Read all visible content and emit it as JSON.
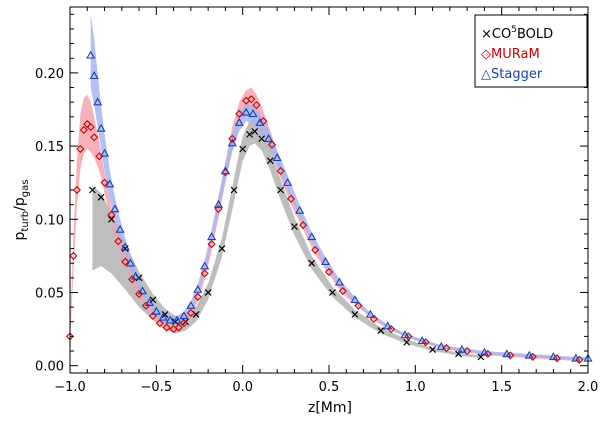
{
  "chart_data": {
    "type": "scatter",
    "xlabel": "z[Mm]",
    "ylabel": "p_turb/p_gas",
    "ylabel_main": "p",
    "ylabel_num_sub": "turb",
    "ylabel_den_sub": "gas",
    "xlim": [
      -1.0,
      2.0
    ],
    "ylim": [
      -0.005,
      0.245
    ],
    "xticks": [
      -1.0,
      -0.5,
      0.0,
      0.5,
      1.0,
      1.5,
      2.0
    ],
    "xtick_labels": [
      "−1.0",
      "−0.5",
      "0.0",
      "0.5",
      "1.0",
      "1.5",
      "2.0"
    ],
    "yticks": [
      0.0,
      0.05,
      0.1,
      0.15,
      0.2
    ],
    "ytick_labels": [
      "0.00",
      "0.05",
      "0.10",
      "0.15",
      "0.20"
    ],
    "legend": {
      "position": "top-right",
      "entries": [
        {
          "marker": "×",
          "text": "CO",
          "sup": "5",
          "text_after": "BOLD",
          "color": "#000000"
        },
        {
          "marker": "◇",
          "text": "MURaM",
          "sup": "",
          "text_after": "",
          "color": "#cc0000"
        },
        {
          "marker": "△",
          "text": "Stagger",
          "sup": "",
          "text_after": "",
          "color": "#1a3fb0"
        }
      ]
    },
    "series": [
      {
        "name": "CO5BOLD",
        "marker": "x",
        "color": "#000000",
        "band_color": "#b3b3b3",
        "x": [
          -0.87,
          -0.82,
          -0.76,
          -0.68,
          -0.6,
          -0.52,
          -0.45,
          -0.39,
          -0.33,
          -0.27,
          -0.2,
          -0.12,
          -0.05,
          0.0,
          0.04,
          0.07,
          0.11,
          0.16,
          0.22,
          0.3,
          0.4,
          0.52,
          0.65,
          0.8,
          0.95,
          1.1,
          1.25,
          1.38
        ],
        "y": [
          0.12,
          0.115,
          0.1,
          0.08,
          0.06,
          0.045,
          0.035,
          0.03,
          0.03,
          0.035,
          0.05,
          0.08,
          0.12,
          0.148,
          0.158,
          0.16,
          0.155,
          0.14,
          0.12,
          0.095,
          0.07,
          0.05,
          0.035,
          0.024,
          0.016,
          0.011,
          0.008,
          0.006
        ],
        "band_upper": [
          0.123,
          0.118,
          0.104,
          0.084,
          0.064,
          0.049,
          0.039,
          0.034,
          0.034,
          0.04,
          0.056,
          0.087,
          0.128,
          0.157,
          0.167,
          0.169,
          0.164,
          0.148,
          0.127,
          0.101,
          0.075,
          0.054,
          0.038,
          0.026,
          0.018,
          0.012,
          0.009,
          0.007
        ],
        "band_lower": [
          0.065,
          0.068,
          0.063,
          0.052,
          0.04,
          0.031,
          0.025,
          0.022,
          0.024,
          0.03,
          0.045,
          0.074,
          0.112,
          0.14,
          0.15,
          0.152,
          0.147,
          0.133,
          0.113,
          0.089,
          0.066,
          0.047,
          0.033,
          0.022,
          0.015,
          0.01,
          0.007,
          0.005
        ]
      },
      {
        "name": "MURaM",
        "marker": "diamond",
        "color": "#cc0000",
        "band_color": "#f5a3ae",
        "x": [
          -1.0,
          -0.98,
          -0.96,
          -0.94,
          -0.92,
          -0.9,
          -0.88,
          -0.86,
          -0.83,
          -0.8,
          -0.76,
          -0.72,
          -0.68,
          -0.64,
          -0.6,
          -0.56,
          -0.52,
          -0.48,
          -0.44,
          -0.4,
          -0.37,
          -0.34,
          -0.3,
          -0.26,
          -0.22,
          -0.18,
          -0.14,
          -0.1,
          -0.06,
          -0.02,
          0.02,
          0.05,
          0.08,
          0.12,
          0.17,
          0.22,
          0.28,
          0.35,
          0.42,
          0.5,
          0.58,
          0.67,
          0.76,
          0.86,
          0.96,
          1.06,
          1.18,
          1.3,
          1.42,
          1.55,
          1.68,
          1.82,
          1.95
        ],
        "y": [
          0.02,
          0.075,
          0.12,
          0.148,
          0.161,
          0.165,
          0.163,
          0.156,
          0.143,
          0.125,
          0.103,
          0.085,
          0.071,
          0.059,
          0.049,
          0.041,
          0.034,
          0.029,
          0.026,
          0.025,
          0.026,
          0.029,
          0.036,
          0.047,
          0.063,
          0.083,
          0.107,
          0.132,
          0.155,
          0.172,
          0.181,
          0.182,
          0.178,
          0.167,
          0.151,
          0.133,
          0.114,
          0.096,
          0.079,
          0.064,
          0.051,
          0.041,
          0.032,
          0.025,
          0.02,
          0.016,
          0.012,
          0.01,
          0.008,
          0.007,
          0.006,
          0.005,
          0.004
        ],
        "band_upper": [
          0.025,
          0.09,
          0.14,
          0.172,
          0.183,
          0.185,
          0.18,
          0.17,
          0.153,
          0.132,
          0.108,
          0.089,
          0.074,
          0.062,
          0.051,
          0.043,
          0.036,
          0.031,
          0.028,
          0.027,
          0.028,
          0.031,
          0.038,
          0.05,
          0.067,
          0.088,
          0.113,
          0.139,
          0.163,
          0.18,
          0.188,
          0.19,
          0.185,
          0.174,
          0.157,
          0.138,
          0.118,
          0.099,
          0.082,
          0.066,
          0.053,
          0.042,
          0.033,
          0.026,
          0.021,
          0.017,
          0.013,
          0.011,
          0.009,
          0.008,
          0.007,
          0.006,
          0.005
        ],
        "band_lower": [
          0.015,
          0.065,
          0.108,
          0.134,
          0.145,
          0.148,
          0.146,
          0.142,
          0.133,
          0.118,
          0.098,
          0.081,
          0.068,
          0.056,
          0.047,
          0.039,
          0.032,
          0.027,
          0.024,
          0.023,
          0.024,
          0.027,
          0.034,
          0.044,
          0.059,
          0.078,
          0.101,
          0.125,
          0.147,
          0.164,
          0.173,
          0.175,
          0.171,
          0.16,
          0.145,
          0.128,
          0.11,
          0.093,
          0.076,
          0.062,
          0.049,
          0.04,
          0.031,
          0.024,
          0.019,
          0.015,
          0.011,
          0.009,
          0.007,
          0.006,
          0.005,
          0.004,
          0.003
        ]
      },
      {
        "name": "Stagger",
        "marker": "triangle",
        "color": "#1a3fb0",
        "band_color": "#a6b5f2",
        "x": [
          -0.88,
          -0.86,
          -0.84,
          -0.82,
          -0.8,
          -0.77,
          -0.74,
          -0.71,
          -0.68,
          -0.65,
          -0.62,
          -0.58,
          -0.54,
          -0.5,
          -0.46,
          -0.42,
          -0.38,
          -0.34,
          -0.3,
          -0.26,
          -0.22,
          -0.18,
          -0.14,
          -0.1,
          -0.06,
          -0.02,
          0.02,
          0.06,
          0.1,
          0.15,
          0.2,
          0.26,
          0.33,
          0.4,
          0.48,
          0.56,
          0.65,
          0.74,
          0.84,
          0.94,
          1.04,
          1.15,
          1.27,
          1.4,
          1.53,
          1.66,
          1.8,
          1.93,
          2.0
        ],
        "y": [
          0.212,
          0.198,
          0.18,
          0.162,
          0.145,
          0.124,
          0.107,
          0.093,
          0.081,
          0.07,
          0.061,
          0.051,
          0.043,
          0.037,
          0.033,
          0.031,
          0.031,
          0.034,
          0.041,
          0.052,
          0.068,
          0.088,
          0.11,
          0.133,
          0.152,
          0.166,
          0.173,
          0.172,
          0.166,
          0.155,
          0.142,
          0.125,
          0.106,
          0.088,
          0.071,
          0.057,
          0.045,
          0.035,
          0.027,
          0.021,
          0.017,
          0.013,
          0.011,
          0.009,
          0.008,
          0.007,
          0.006,
          0.005,
          0.005
        ],
        "band_upper": [
          0.24,
          0.223,
          0.2,
          0.178,
          0.158,
          0.134,
          0.115,
          0.1,
          0.087,
          0.075,
          0.065,
          0.054,
          0.046,
          0.04,
          0.036,
          0.034,
          0.034,
          0.037,
          0.044,
          0.056,
          0.072,
          0.093,
          0.116,
          0.139,
          0.158,
          0.172,
          0.179,
          0.178,
          0.172,
          0.161,
          0.147,
          0.13,
          0.11,
          0.091,
          0.074,
          0.059,
          0.047,
          0.036,
          0.028,
          0.022,
          0.018,
          0.014,
          0.012,
          0.01,
          0.009,
          0.008,
          0.007,
          0.006,
          0.006
        ],
        "band_lower": [
          0.19,
          0.178,
          0.163,
          0.148,
          0.133,
          0.114,
          0.099,
          0.086,
          0.075,
          0.065,
          0.057,
          0.048,
          0.04,
          0.034,
          0.03,
          0.028,
          0.028,
          0.031,
          0.038,
          0.048,
          0.064,
          0.083,
          0.104,
          0.127,
          0.146,
          0.16,
          0.167,
          0.166,
          0.16,
          0.149,
          0.137,
          0.12,
          0.102,
          0.085,
          0.068,
          0.055,
          0.043,
          0.034,
          0.026,
          0.02,
          0.016,
          0.012,
          0.01,
          0.008,
          0.007,
          0.006,
          0.005,
          0.004,
          0.004
        ]
      }
    ]
  }
}
